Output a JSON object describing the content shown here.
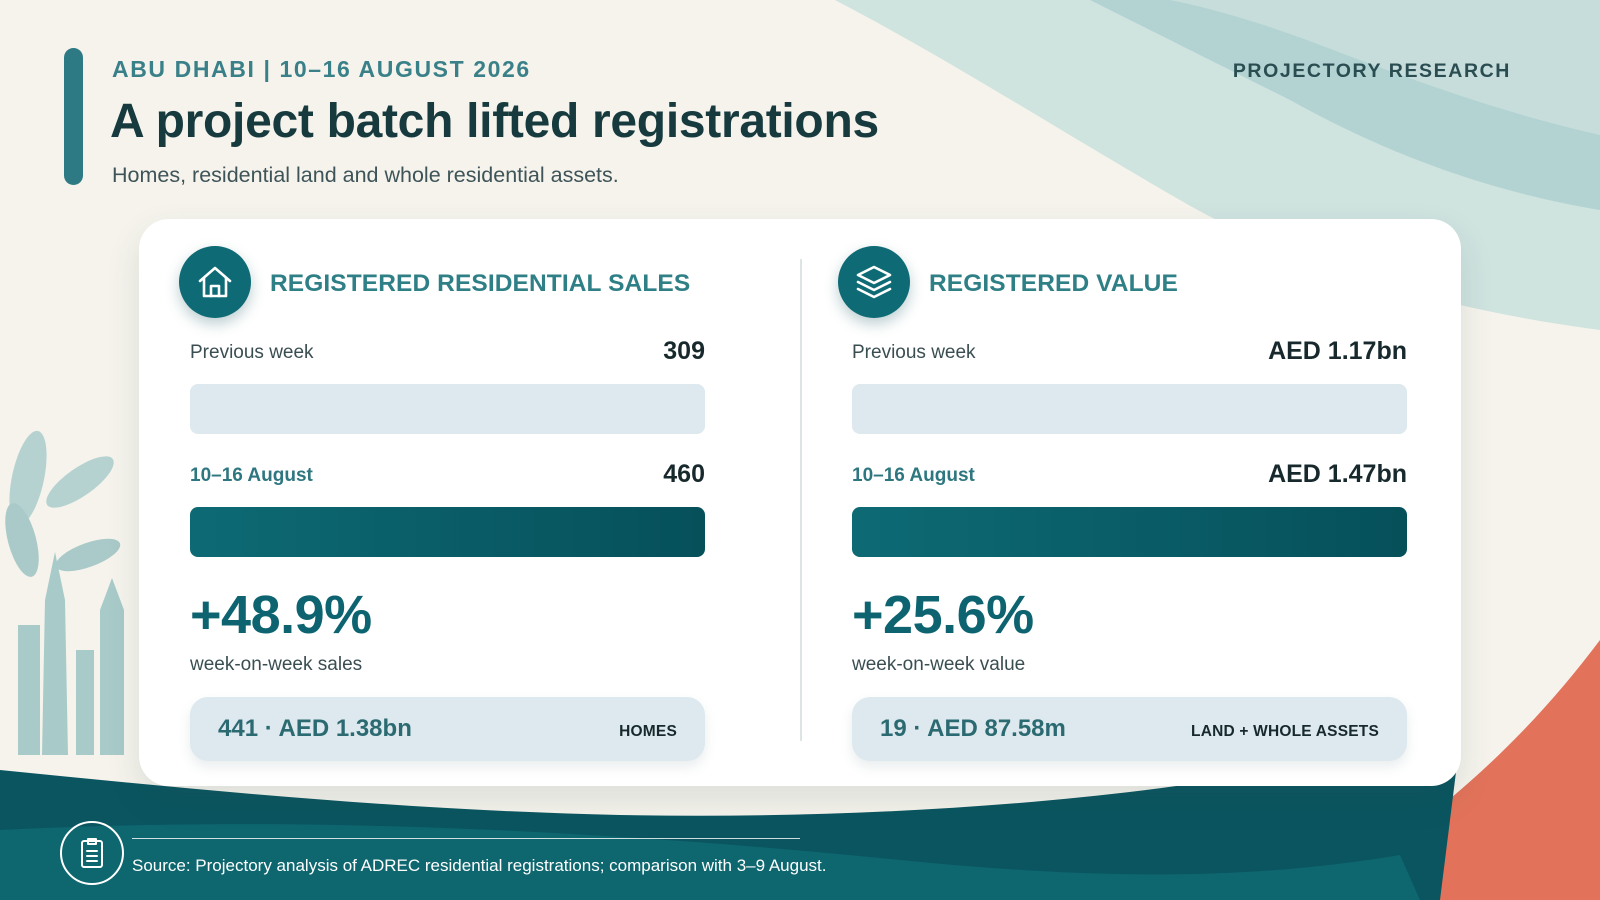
{
  "header": {
    "eyebrow": "ABU DHABI | 10–16 AUGUST 2026",
    "title": "A project batch lifted registrations",
    "subtitle": "Homes, residential land and whole residential assets.",
    "brand": "PROJECTORY RESEARCH"
  },
  "panels": {
    "sales": {
      "icon": "house-icon",
      "title": "REGISTERED RESIDENTIAL SALES",
      "previous": {
        "label": "Previous week",
        "value_text": "309",
        "value": 309
      },
      "current": {
        "label": "10–16 August",
        "value_text": "460",
        "value": 460
      },
      "change": "+48.9%",
      "change_label": "week-on-week sales",
      "breakdown": {
        "text": "441 · AED 1.38bn",
        "tag": "HOMES"
      }
    },
    "value": {
      "icon": "layers-icon",
      "title": "REGISTERED VALUE",
      "previous": {
        "label": "Previous week",
        "value_text": "AED 1.17bn",
        "value": 1.17
      },
      "current": {
        "label": "10–16 August",
        "value_text": "AED 1.47bn",
        "value": 1.47
      },
      "change": "+25.6%",
      "change_label": "week-on-week value",
      "breakdown": {
        "text": "19 · AED 87.58m",
        "tag": "LAND + WHOLE ASSETS"
      }
    }
  },
  "footer": {
    "icon": "document-icon",
    "source": "Source: Projectory analysis of ADREC residential registrations; comparison with 3–9 August."
  },
  "colors": {
    "background": "#f5f3ec",
    "accent_teal": "#0e6a74",
    "dark_teal": "#0a5560",
    "light_teal_track": "#dde9ee",
    "coral": "#e2735a",
    "text_dark": "#163a3e"
  }
}
